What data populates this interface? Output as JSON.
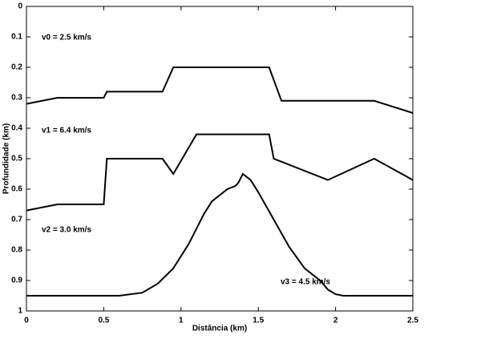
{
  "chart_data": {
    "type": "line",
    "xlabel": "Distância (km)",
    "ylabel": "Profundidade (km)",
    "xlim": [
      0,
      2.5
    ],
    "xticks": [
      0,
      0.5,
      1,
      1.5,
      2,
      2.5
    ],
    "ylim": [
      1,
      0
    ],
    "yticks": [
      0,
      0.1,
      0.2,
      0.3,
      0.4,
      0.5,
      0.6,
      0.7,
      0.8,
      0.9,
      1
    ],
    "annotations": [
      "v0 = 2.5 km/s",
      "v1 = 6.4 km/s",
      "v2 = 3.0 km/s",
      "v3 = 4.5 km/s"
    ],
    "series": [
      {
        "color": "#000000",
        "x": [
          0,
          0.2,
          0.5,
          0.52,
          0.88,
          0.95,
          1.57,
          1.65,
          2.25,
          2.5
        ],
        "values": [
          0.32,
          0.3,
          0.3,
          0.28,
          0.28,
          0.2,
          0.2,
          0.31,
          0.31,
          0.35
        ]
      },
      {
        "color": "#000000",
        "x": [
          0,
          0.2,
          0.5,
          0.52,
          0.88,
          0.95,
          1.1,
          1.57,
          1.6,
          1.95,
          2.25,
          2.5
        ],
        "values": [
          0.67,
          0.65,
          0.65,
          0.5,
          0.5,
          0.55,
          0.42,
          0.42,
          0.5,
          0.57,
          0.5,
          0.57
        ]
      },
      {
        "color": "#000000",
        "x": [
          0,
          0.6,
          0.75,
          0.85,
          0.95,
          1.05,
          1.15,
          1.2,
          1.3,
          1.35,
          1.37,
          1.4,
          1.45,
          1.5,
          1.6,
          1.7,
          1.8,
          1.9,
          1.95,
          2.0,
          2.05,
          2.5
        ],
        "values": [
          0.95,
          0.95,
          0.94,
          0.91,
          0.86,
          0.78,
          0.68,
          0.64,
          0.6,
          0.59,
          0.58,
          0.55,
          0.57,
          0.61,
          0.7,
          0.79,
          0.86,
          0.9,
          0.93,
          0.945,
          0.95,
          0.95
        ]
      }
    ]
  }
}
